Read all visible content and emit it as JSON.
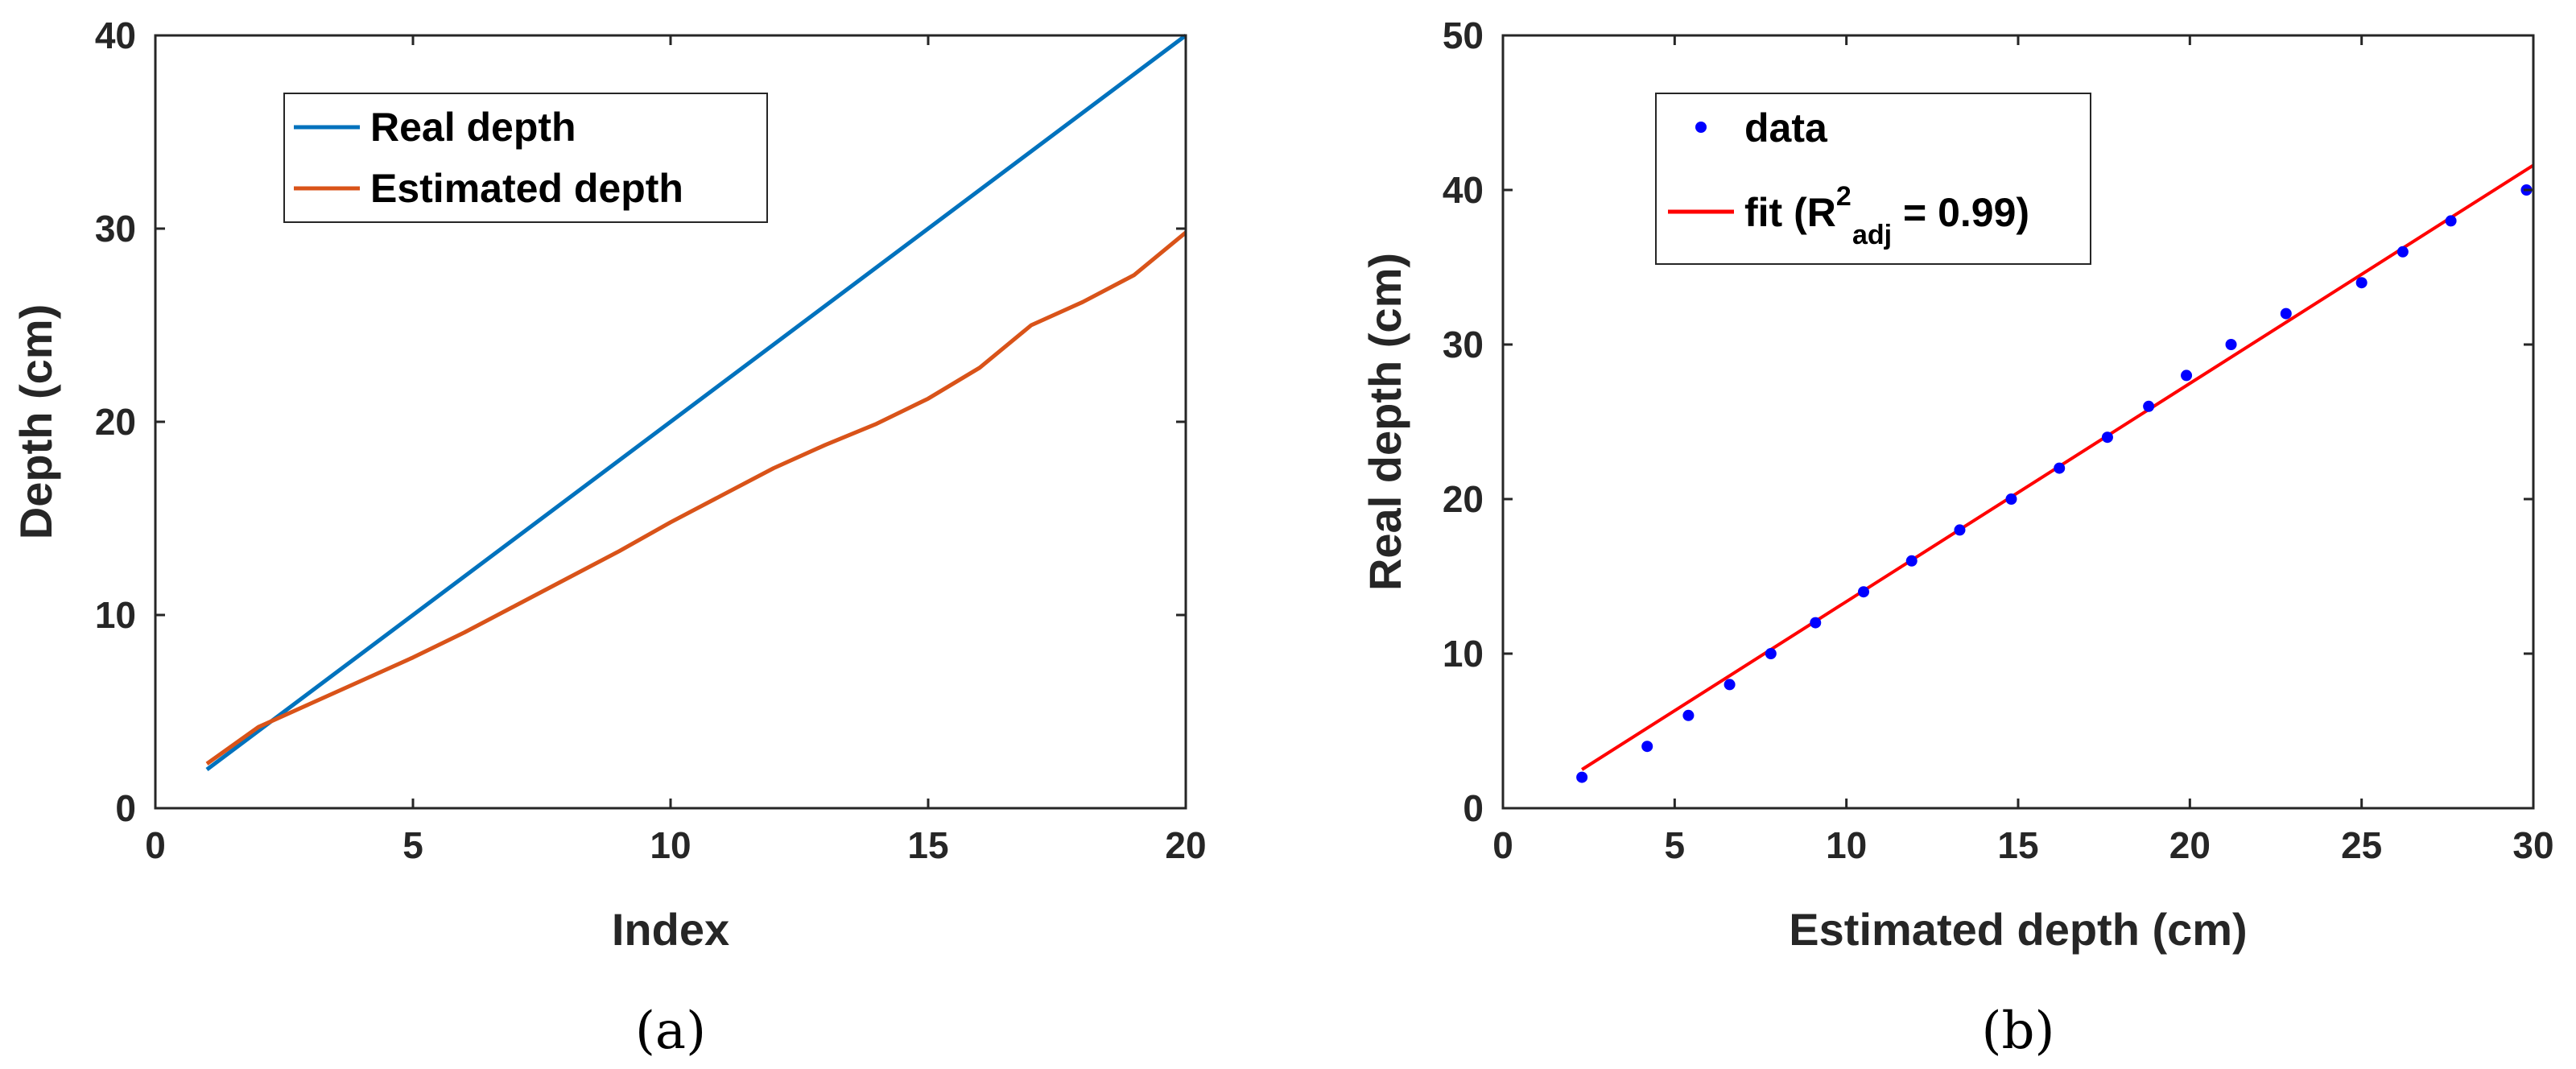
{
  "panels": {
    "a": "(a)",
    "b": "(b)"
  },
  "colors": {
    "real": "#0072BD",
    "estimated": "#D95319",
    "data": "#0000FF",
    "fit": "#FF0000",
    "axis": "#262626"
  },
  "chart_data": [
    {
      "type": "line",
      "panel_label": "(a)",
      "xlabel": "Index",
      "ylabel": "Depth (cm)",
      "xlim": [
        0,
        20
      ],
      "ylim": [
        0,
        40
      ],
      "xticks": [
        0,
        5,
        10,
        15,
        20
      ],
      "yticks": [
        0,
        10,
        20,
        30,
        40
      ],
      "grid": false,
      "legend_position": "top-left",
      "series": [
        {
          "name": "Real depth",
          "x": [
            1,
            2,
            3,
            4,
            5,
            6,
            7,
            8,
            9,
            10,
            11,
            12,
            13,
            14,
            15,
            16,
            17,
            18,
            19,
            20
          ],
          "y": [
            2,
            4,
            6,
            8,
            10,
            12,
            14,
            16,
            18,
            20,
            22,
            24,
            26,
            28,
            30,
            32,
            34,
            36,
            38,
            40
          ]
        },
        {
          "name": "Estimated depth",
          "x": [
            1,
            2,
            3,
            4,
            5,
            6,
            7,
            8,
            9,
            10,
            11,
            12,
            13,
            14,
            15,
            16,
            17,
            18,
            19,
            20
          ],
          "y": [
            2.3,
            4.2,
            5.4,
            6.6,
            7.8,
            9.1,
            10.5,
            11.9,
            13.3,
            14.8,
            16.2,
            17.6,
            18.8,
            19.9,
            21.2,
            22.8,
            25.0,
            26.2,
            27.6,
            29.8
          ]
        }
      ]
    },
    {
      "type": "scatter",
      "panel_label": "(b)",
      "xlabel": "Estimated depth (cm)",
      "ylabel": "Real depth (cm)",
      "xlim": [
        0,
        30
      ],
      "ylim": [
        0,
        50
      ],
      "xticks": [
        0,
        5,
        10,
        15,
        20,
        25,
        30
      ],
      "yticks": [
        0,
        10,
        20,
        30,
        40,
        50
      ],
      "grid": false,
      "legend_position": "top-left",
      "data_legend": "data",
      "fit_legend": {
        "prefix": "fit (R",
        "sup": "2",
        "sub": "adj",
        "suffix": " = 0.99)"
      },
      "series": [
        {
          "name": "data",
          "x": [
            2.3,
            4.2,
            5.4,
            6.6,
            7.8,
            9.1,
            10.5,
            11.9,
            13.3,
            14.8,
            16.2,
            17.6,
            18.8,
            19.9,
            21.2,
            22.8,
            25.0,
            26.2,
            27.6,
            29.8
          ],
          "y": [
            2,
            4,
            6,
            8,
            10,
            12,
            14,
            16,
            18,
            20,
            22,
            24,
            26,
            28,
            30,
            32,
            34,
            36,
            38,
            40
          ]
        }
      ],
      "fit": {
        "x": [
          2.3,
          30
        ],
        "y": [
          2.5,
          41.6
        ]
      }
    }
  ]
}
